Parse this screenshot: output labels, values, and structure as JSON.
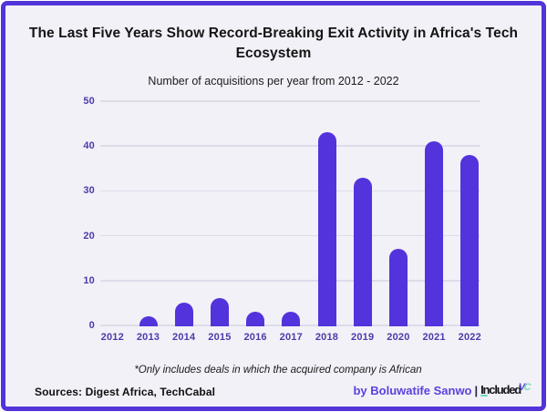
{
  "frame": {
    "border_color": "#5334da",
    "background_color": "#f2f1f8"
  },
  "title": "The Last Five Years Show Record-Breaking Exit Activity in Africa's Tech Ecosystem",
  "subtitle": "Number of acquisitions per year from 2012 - 2022",
  "footnote": "*Only includes deals in which the acquired company is African",
  "sources": "Sources: Digest Africa, TechCabal",
  "byline": {
    "author": "by Boluwatife Sanwo",
    "separator": "|",
    "logo_word": "Included",
    "logo_sup_v": "V",
    "logo_sup_c": "C"
  },
  "chart_data": {
    "type": "bar",
    "title": "The Last Five Years Show Record-Breaking Exit Activity in Africa's Tech Ecosystem",
    "subtitle": "Number of acquisitions per year from 2012 - 2022",
    "categories": [
      "2012",
      "2013",
      "2014",
      "2015",
      "2016",
      "2017",
      "2018",
      "2019",
      "2020",
      "2021",
      "2022"
    ],
    "values": [
      0,
      2,
      5,
      6,
      3,
      3,
      43,
      33,
      17,
      41,
      38
    ],
    "xlabel": "",
    "ylabel": "",
    "ylim": [
      0,
      50
    ],
    "yticks": [
      0,
      10,
      20,
      30,
      40,
      50
    ],
    "grid": true,
    "legend": false,
    "bar_color": "#5233dc",
    "grid_color": "#dedbe9",
    "tick_label_color": "#4c3ba8"
  }
}
